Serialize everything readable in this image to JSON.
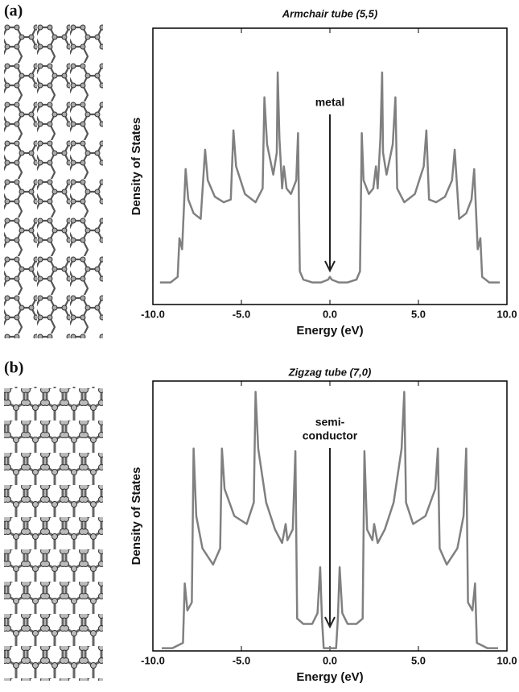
{
  "chart_data": [
    {
      "type": "line",
      "panel_label": "(a)",
      "title": "Armchair tube (5,5)",
      "x_label": "Energy (eV)",
      "y_label": "Density of States",
      "annotation": [
        "metal"
      ],
      "xlim": [
        -10,
        10
      ],
      "ylim": [
        0,
        100
      ],
      "xticks": [
        {
          "value": -10,
          "label": "-10.0"
        },
        {
          "value": -5,
          "label": "-5.0"
        },
        {
          "value": 0,
          "label": "0.0"
        },
        {
          "value": 5,
          "label": "5.0"
        },
        {
          "value": 10,
          "label": "10.0"
        }
      ],
      "x": [
        -9.6,
        -9.0,
        -8.6,
        -8.5,
        -8.35,
        -8.15,
        -8.0,
        -7.7,
        -7.3,
        -7.05,
        -6.9,
        -6.5,
        -6.0,
        -5.6,
        -5.45,
        -5.3,
        -4.8,
        -4.2,
        -3.8,
        -3.7,
        -3.55,
        -3.2,
        -3.0,
        -2.95,
        -2.85,
        -2.7,
        -2.6,
        -2.45,
        -2.2,
        -1.9,
        -1.8,
        -1.7,
        -1.5,
        -1.0,
        -0.5,
        -0.1,
        0,
        0.1,
        0.5,
        1.0,
        1.5,
        1.7,
        1.8,
        1.9,
        2.2,
        2.45,
        2.6,
        2.7,
        2.85,
        2.95,
        3.0,
        3.2,
        3.55,
        3.7,
        3.8,
        4.2,
        4.8,
        5.3,
        5.45,
        5.6,
        6.0,
        6.5,
        6.9,
        7.05,
        7.3,
        7.7,
        8.0,
        8.15,
        8.35,
        8.5,
        8.6,
        9.0,
        9.6
      ],
      "series": [
        {
          "color": "#808080",
          "values": [
            8,
            8,
            10,
            24,
            20,
            49,
            38,
            33,
            31,
            56,
            45,
            39,
            37,
            38,
            63,
            50,
            40,
            37,
            42,
            75,
            58,
            47,
            55,
            84,
            60,
            42,
            50,
            42,
            40,
            45,
            62,
            12,
            9,
            8,
            8,
            9,
            10,
            9,
            8,
            8,
            9,
            12,
            62,
            45,
            40,
            42,
            50,
            42,
            60,
            84,
            55,
            47,
            58,
            75,
            42,
            37,
            40,
            50,
            63,
            38,
            37,
            39,
            45,
            56,
            31,
            33,
            38,
            49,
            20,
            24,
            10,
            8,
            8
          ]
        }
      ]
    },
    {
      "type": "line",
      "panel_label": "(b)",
      "title": "Zigzag tube (7,0)",
      "x_label": "Energy (eV)",
      "y_label": "Density of States",
      "annotation": [
        "semi-",
        "conductor"
      ],
      "xlim": [
        -10,
        10
      ],
      "ylim": [
        0,
        100
      ],
      "xticks": [
        {
          "value": -10,
          "label": "-10.0"
        },
        {
          "value": -5,
          "label": "-5.0"
        },
        {
          "value": 0,
          "label": "0.0"
        },
        {
          "value": 5,
          "label": "5.0"
        },
        {
          "value": 10,
          "label": "10.0"
        }
      ],
      "x": [
        -9.5,
        -8.9,
        -8.3,
        -8.2,
        -8.05,
        -7.8,
        -7.7,
        -7.55,
        -7.2,
        -6.6,
        -6.2,
        -6.1,
        -5.95,
        -5.4,
        -4.7,
        -4.3,
        -4.2,
        -4.05,
        -3.6,
        -3.1,
        -2.7,
        -2.5,
        -2.4,
        -2.1,
        -1.95,
        -1.85,
        -1.5,
        -1.0,
        -0.7,
        -0.55,
        -0.45,
        -0.35,
        0,
        0.35,
        0.45,
        0.55,
        0.7,
        1.0,
        1.5,
        1.85,
        1.95,
        2.1,
        2.4,
        2.5,
        2.7,
        3.1,
        3.6,
        4.05,
        4.2,
        4.3,
        4.7,
        5.4,
        5.95,
        6.1,
        6.2,
        6.6,
        7.2,
        7.55,
        7.7,
        7.8,
        8.05,
        8.2,
        8.3,
        8.9,
        9.5
      ],
      "series": [
        {
          "color": "#808080",
          "values": [
            1,
            1,
            3,
            25,
            15,
            18,
            75,
            50,
            38,
            32,
            38,
            75,
            60,
            50,
            47,
            55,
            96,
            75,
            55,
            45,
            40,
            47,
            41,
            45,
            74,
            12,
            10,
            10,
            14,
            31,
            12,
            1,
            1,
            1,
            12,
            31,
            14,
            10,
            10,
            12,
            74,
            45,
            41,
            47,
            40,
            45,
            55,
            75,
            96,
            55,
            47,
            50,
            60,
            75,
            38,
            32,
            38,
            50,
            75,
            18,
            15,
            25,
            3,
            1,
            1
          ]
        }
      ]
    }
  ]
}
